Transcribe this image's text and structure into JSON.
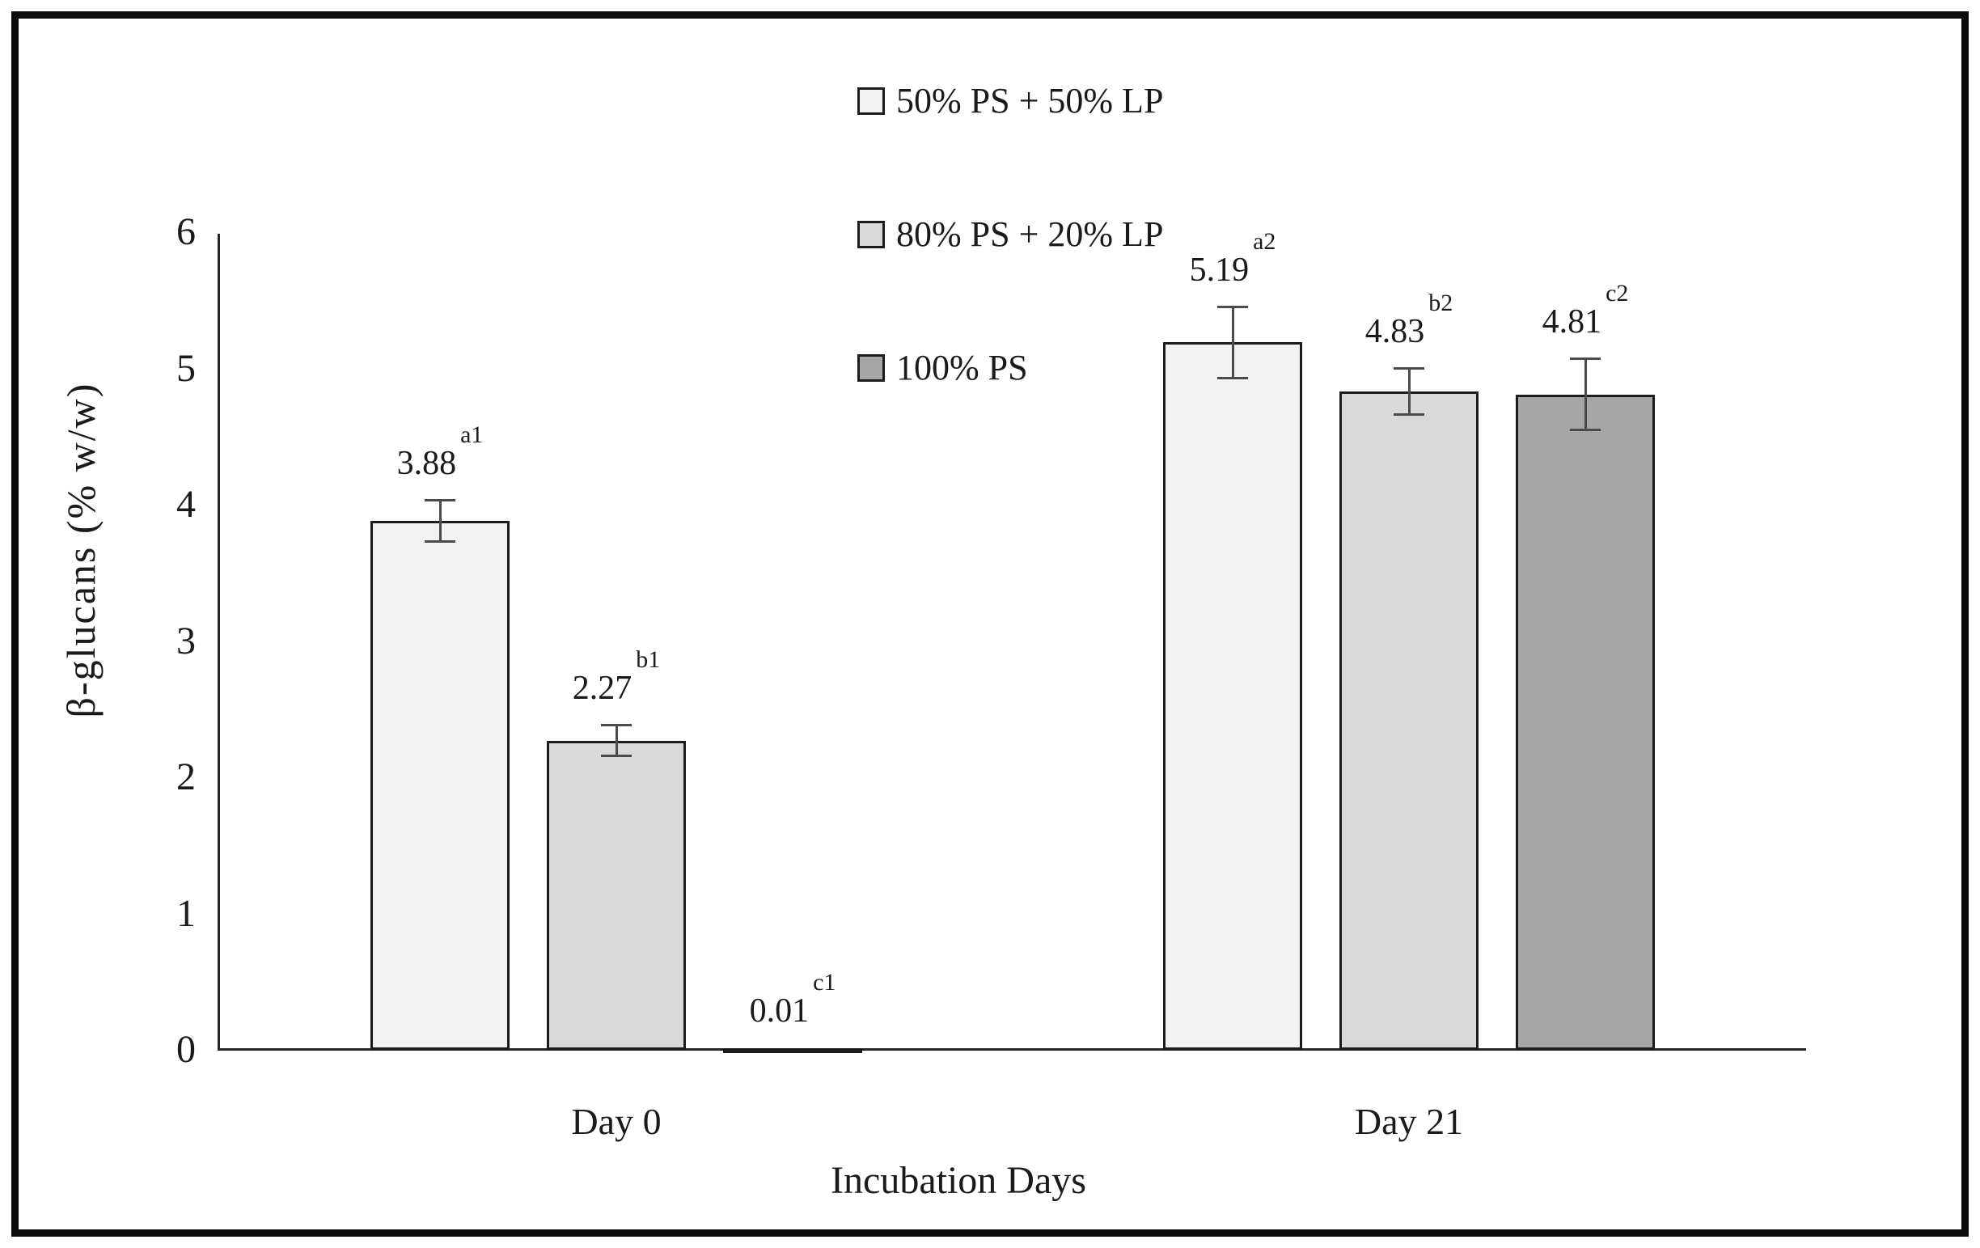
{
  "chart_data": {
    "type": "bar",
    "title": "",
    "xlabel": "Incubation Days",
    "ylabel": "β-glucans (% w/w)",
    "ylim": [
      0,
      6
    ],
    "yticks": [
      "0",
      "1",
      "2",
      "3",
      "4",
      "5",
      "6"
    ],
    "grid": false,
    "legend_position": "top-center",
    "categories": [
      "Day 0",
      "Day 21"
    ],
    "series": [
      {
        "name": "50% PS + 50% LP",
        "color": "#f2f2f2",
        "values": [
          3.88,
          5.19
        ],
        "errors": [
          0.15,
          0.26
        ],
        "sig_labels": [
          "a1",
          "a2"
        ]
      },
      {
        "name": "80% PS + 20% LP",
        "color": "#d9d9d9",
        "values": [
          2.27,
          4.83
        ],
        "errors": [
          0.11,
          0.17
        ],
        "sig_labels": [
          "b1",
          "b2"
        ]
      },
      {
        "name": "100% PS",
        "color": "#a6a6a6",
        "values": [
          0.01,
          4.81
        ],
        "errors": [
          0.0,
          0.26
        ],
        "sig_labels": [
          "c1",
          "c2"
        ]
      }
    ],
    "bar_border_color": "#1c1c1c",
    "error_bar_color": "#4a4a4a",
    "axis_color": "#262626"
  }
}
